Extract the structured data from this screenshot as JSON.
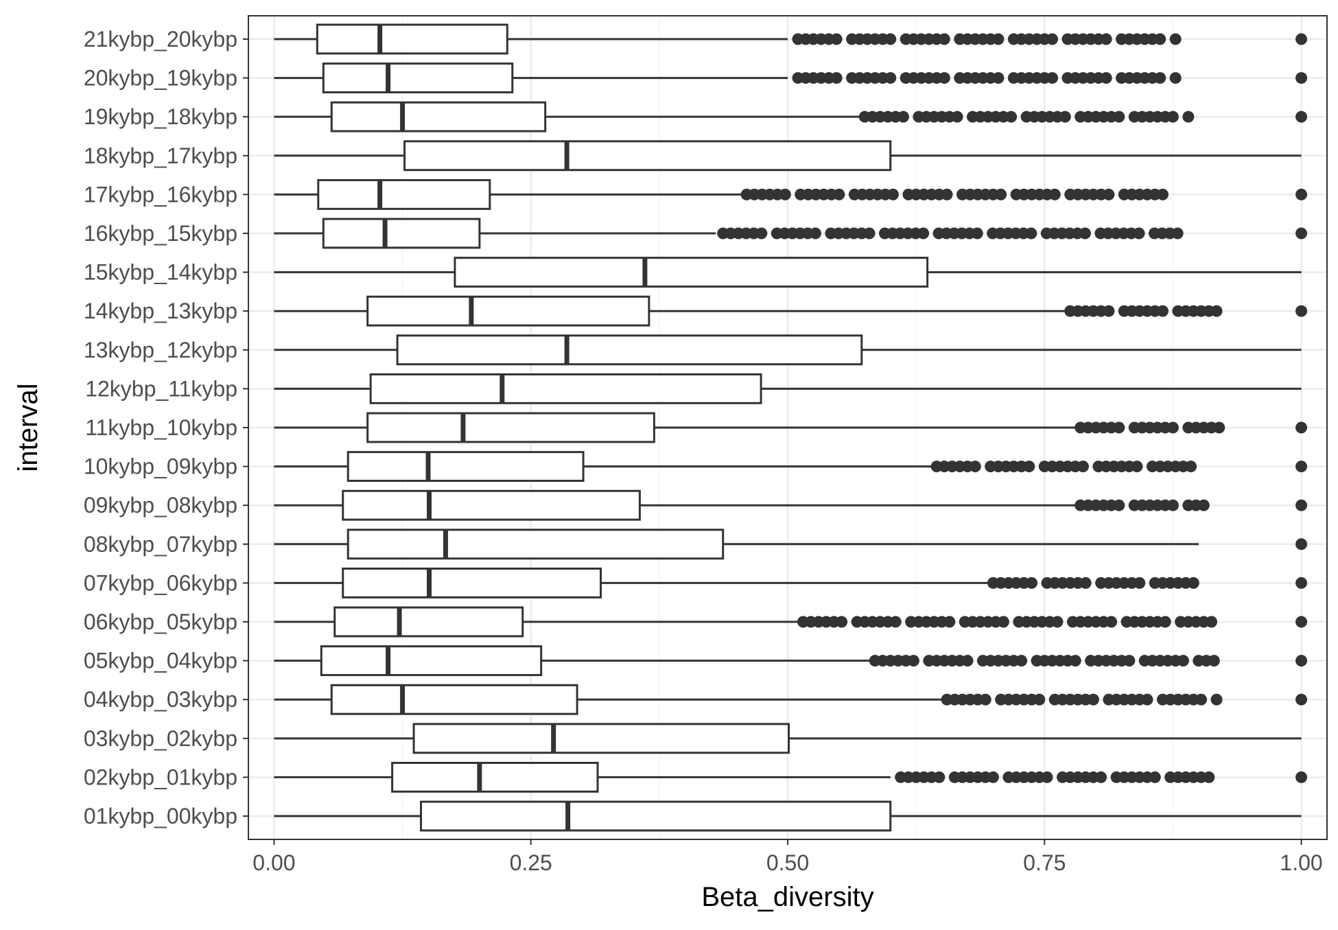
{
  "chart_data": {
    "type": "boxplot",
    "orientation": "horizontal",
    "title": "",
    "xlabel": "Beta_diversity",
    "ylabel": "interval",
    "xlim": [
      -0.025,
      1.025
    ],
    "xticks": [
      0.0,
      0.25,
      0.5,
      0.75,
      1.0
    ],
    "xtick_labels": [
      "0.00",
      "0.25",
      "0.50",
      "0.75",
      "1.00"
    ],
    "grid": true,
    "legend": "none",
    "colors": {
      "box_line": "#333333",
      "box_fill": "#ffffff",
      "outlier": "#333333",
      "grid_major": "#ebebeb",
      "grid_minor": "#f5f5f5",
      "panel_border": "#333333"
    },
    "series": [
      {
        "category": "21kybp_20kybp",
        "whisker_low": 0.0,
        "q1": 0.042,
        "median": 0.103,
        "q3": 0.227,
        "whisker_high": 0.5,
        "outlier_ranges": [
          [
            0.51,
            0.88
          ]
        ],
        "outliers": [
          1.0
        ]
      },
      {
        "category": "20kybp_19kybp",
        "whisker_low": 0.0,
        "q1": 0.048,
        "median": 0.111,
        "q3": 0.232,
        "whisker_high": 0.5,
        "outlier_ranges": [
          [
            0.51,
            0.88
          ]
        ],
        "outliers": [
          1.0
        ]
      },
      {
        "category": "19kybp_18kybp",
        "whisker_low": 0.0,
        "q1": 0.056,
        "median": 0.125,
        "q3": 0.264,
        "whisker_high": 0.57,
        "outlier_ranges": [
          [
            0.575,
            0.89
          ]
        ],
        "outliers": [
          1.0
        ]
      },
      {
        "category": "18kybp_17kybp",
        "whisker_low": 0.0,
        "q1": 0.127,
        "median": 0.285,
        "q3": 0.6,
        "whisker_high": 1.0,
        "outlier_ranges": [],
        "outliers": []
      },
      {
        "category": "17kybp_16kybp",
        "whisker_low": 0.0,
        "q1": 0.043,
        "median": 0.103,
        "q3": 0.21,
        "whisker_high": 0.455,
        "outlier_ranges": [
          [
            0.46,
            0.87
          ]
        ],
        "outliers": [
          1.0
        ]
      },
      {
        "category": "16kybp_15kybp",
        "whisker_low": 0.0,
        "q1": 0.048,
        "median": 0.108,
        "q3": 0.2,
        "whisker_high": 0.43,
        "outlier_ranges": [
          [
            0.437,
            0.88
          ]
        ],
        "outliers": [
          1.0
        ]
      },
      {
        "category": "15kybp_14kybp",
        "whisker_low": 0.0,
        "q1": 0.176,
        "median": 0.361,
        "q3": 0.636,
        "whisker_high": 1.0,
        "outlier_ranges": [],
        "outliers": []
      },
      {
        "category": "14kybp_13kybp",
        "whisker_low": 0.0,
        "q1": 0.091,
        "median": 0.192,
        "q3": 0.365,
        "whisker_high": 0.77,
        "outlier_ranges": [
          [
            0.775,
            0.92
          ]
        ],
        "outliers": [
          1.0
        ]
      },
      {
        "category": "13kybp_12kybp",
        "whisker_low": 0.0,
        "q1": 0.12,
        "median": 0.285,
        "q3": 0.572,
        "whisker_high": 1.0,
        "outlier_ranges": [],
        "outliers": []
      },
      {
        "category": "12kybp_11kybp",
        "whisker_low": 0.0,
        "q1": 0.094,
        "median": 0.222,
        "q3": 0.474,
        "whisker_high": 1.0,
        "outlier_ranges": [],
        "outliers": []
      },
      {
        "category": "11kybp_10kybp",
        "whisker_low": 0.0,
        "q1": 0.091,
        "median": 0.184,
        "q3": 0.37,
        "whisker_high": 0.78,
        "outlier_ranges": [
          [
            0.785,
            0.925
          ]
        ],
        "outliers": [
          1.0
        ]
      },
      {
        "category": "10kybp_09kybp",
        "whisker_low": 0.0,
        "q1": 0.072,
        "median": 0.15,
        "q3": 0.301,
        "whisker_high": 0.64,
        "outlier_ranges": [
          [
            0.645,
            0.905
          ]
        ],
        "outliers": [
          1.0
        ]
      },
      {
        "category": "09kybp_08kybp",
        "whisker_low": 0.0,
        "q1": 0.067,
        "median": 0.151,
        "q3": 0.356,
        "whisker_high": 0.78,
        "outlier_ranges": [
          [
            0.785,
            0.905
          ]
        ],
        "outliers": [
          1.0
        ]
      },
      {
        "category": "08kybp_07kybp",
        "whisker_low": 0.0,
        "q1": 0.072,
        "median": 0.167,
        "q3": 0.437,
        "whisker_high": 0.9,
        "outlier_ranges": [],
        "outliers": [
          1.0
        ]
      },
      {
        "category": "07kybp_06kybp",
        "whisker_low": 0.0,
        "q1": 0.067,
        "median": 0.151,
        "q3": 0.318,
        "whisker_high": 0.695,
        "outlier_ranges": [
          [
            0.7,
            0.905
          ]
        ],
        "outliers": [
          1.0
        ]
      },
      {
        "category": "06kybp_05kybp",
        "whisker_low": 0.0,
        "q1": 0.059,
        "median": 0.122,
        "q3": 0.242,
        "whisker_high": 0.51,
        "outlier_ranges": [
          [
            0.515,
            0.915
          ]
        ],
        "outliers": [
          1.0
        ]
      },
      {
        "category": "05kybp_04kybp",
        "whisker_low": 0.0,
        "q1": 0.046,
        "median": 0.111,
        "q3": 0.26,
        "whisker_high": 0.58,
        "outlier_ranges": [
          [
            0.585,
            0.918
          ]
        ],
        "outliers": [
          1.0
        ]
      },
      {
        "category": "04kybp_03kybp",
        "whisker_low": 0.0,
        "q1": 0.056,
        "median": 0.125,
        "q3": 0.295,
        "whisker_high": 0.65,
        "outlier_ranges": [
          [
            0.655,
            0.918
          ]
        ],
        "outliers": [
          1.0
        ]
      },
      {
        "category": "03kybp_02kybp",
        "whisker_low": 0.0,
        "q1": 0.136,
        "median": 0.272,
        "q3": 0.501,
        "whisker_high": 1.0,
        "outlier_ranges": [],
        "outliers": []
      },
      {
        "category": "02kybp_01kybp",
        "whisker_low": 0.0,
        "q1": 0.115,
        "median": 0.2,
        "q3": 0.315,
        "whisker_high": 0.6,
        "outlier_ranges": [
          [
            0.61,
            0.918
          ]
        ],
        "outliers": [
          1.0
        ]
      },
      {
        "category": "01kybp_00kybp",
        "whisker_low": 0.0,
        "q1": 0.143,
        "median": 0.286,
        "q3": 0.6,
        "whisker_high": 1.0,
        "outlier_ranges": [],
        "outliers": []
      }
    ]
  }
}
